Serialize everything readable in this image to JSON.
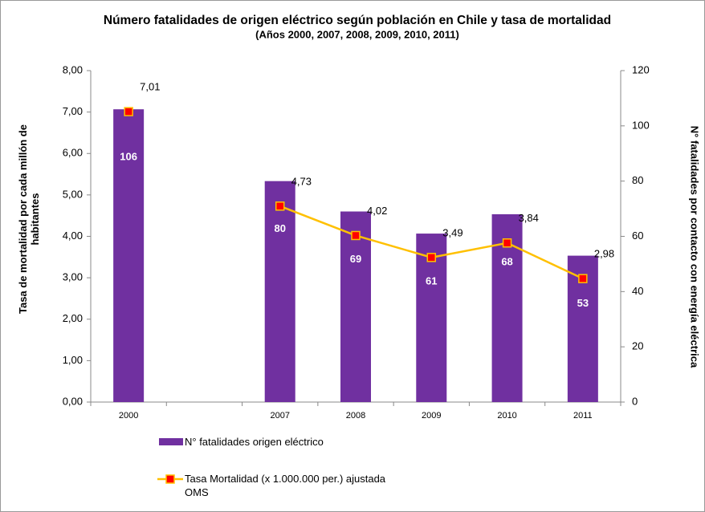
{
  "chart_data": {
    "type": "bar-line",
    "title": "Número fatalidades de origen eléctrico según población en Chile y tasa de mortalidad",
    "subtitle": "(Años 2000, 2007, 2008, 2009, 2010, 2011)",
    "y_label": "Tasa de mortalidad por cada millón de habitantes",
    "y2_label": "N° fatalidades por contacto con energía eléctrica",
    "categories": [
      "2000",
      null,
      "2007",
      "2008",
      "2009",
      "2010",
      "2011"
    ],
    "series": [
      {
        "name": "N° fatalidades origen eléctrico",
        "kind": "bar",
        "axis": "y2",
        "color": "#7030a0",
        "values": [
          106,
          null,
          80,
          69,
          61,
          68,
          53
        ]
      },
      {
        "name": "Tasa Mortalidad (x 1.000.000 per.) ajustada OMS",
        "kind": "line",
        "axis": "y",
        "color": "#ffc000",
        "marker_color": "#ff0000",
        "values": [
          7.01,
          null,
          4.73,
          4.02,
          3.49,
          3.84,
          2.98
        ],
        "value_labels": [
          "7,01",
          null,
          "4,73",
          "4,02",
          "3,49",
          "3,84",
          "2,98"
        ]
      }
    ],
    "ylim": [
      0,
      8
    ],
    "yticks": [
      {
        "value": 0,
        "label": "0,00"
      },
      {
        "value": 1,
        "label": "1,00"
      },
      {
        "value": 2,
        "label": "2,00"
      },
      {
        "value": 3,
        "label": "3,00"
      },
      {
        "value": 4,
        "label": "4,00"
      },
      {
        "value": 5,
        "label": "5,00"
      },
      {
        "value": 6,
        "label": "6,00"
      },
      {
        "value": 7,
        "label": "7,00"
      },
      {
        "value": 8,
        "label": "8,00"
      }
    ],
    "y2lim": [
      0,
      120
    ],
    "y2ticks": [
      0,
      20,
      40,
      60,
      80,
      100,
      120
    ]
  }
}
